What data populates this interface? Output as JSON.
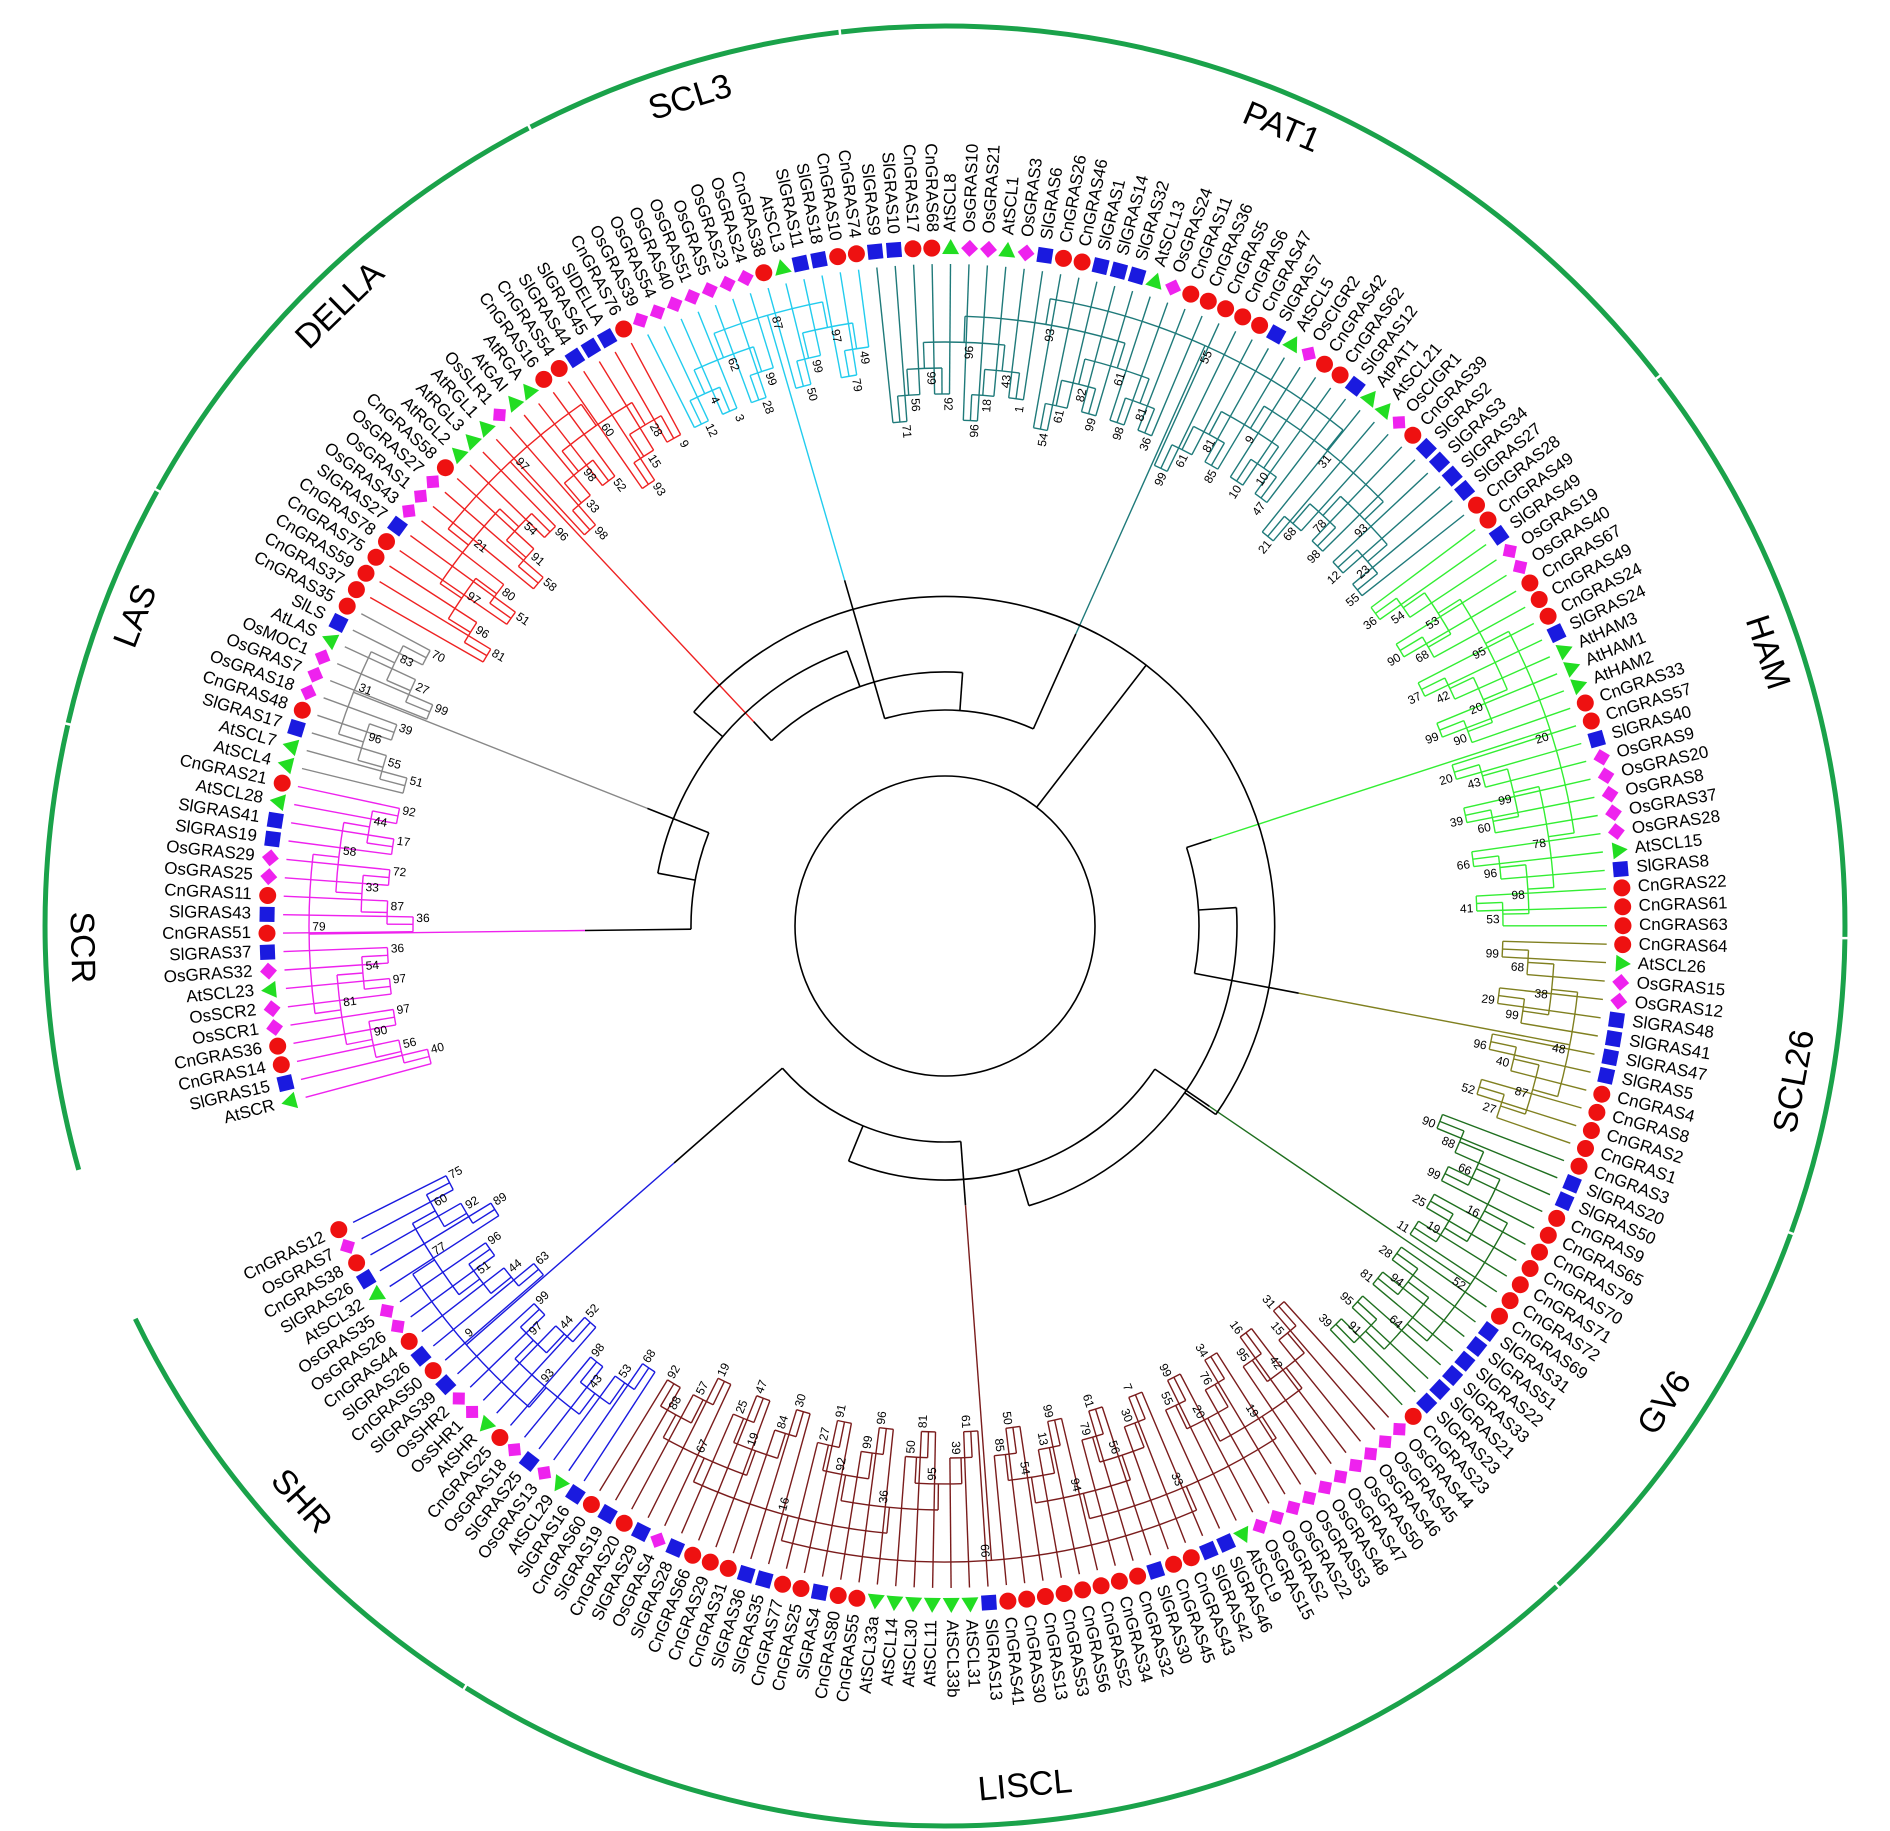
{
  "legend_colors": {
    "Sl": "#1a1adf",
    "Cn": "#ee1111",
    "Os": "#ee22ee",
    "At": "#22dd22",
    "arc": "#1aa24a"
  },
  "marker_shapes": {
    "Sl": "square",
    "Cn": "circle",
    "Os": "diamond",
    "At": "triangle"
  },
  "groups": [
    {
      "name": "SCR",
      "color": "#ee22ee",
      "leaves": [
        "AtSCR",
        "SlGRAS15",
        "CnGRAS14",
        "CnGRAS36",
        "OsSCR1",
        "OsSCR2",
        "AtSCL23",
        "OsGRAS32",
        "SlGRAS37",
        "CnGRAS51",
        "SlGRAS43",
        "CnGRAS11",
        "OsGRAS25",
        "OsGRAS29",
        "SlGRAS19",
        "SlGRAS41",
        "AtSCL28",
        "CnGRAS21"
      ]
    },
    {
      "name": "LAS",
      "color": "#888888",
      "leaves": [
        "AtSCL4",
        "AtSCL7",
        "SlGRAS17",
        "CnGRAS48",
        "OsGRAS18",
        "OsGRAS7",
        "OsMOC1",
        "AtLAS",
        "SlLS",
        "CnGRAS35"
      ]
    },
    {
      "name": "DELLA",
      "color": "#ee2222",
      "leaves": [
        "CnGRAS37",
        "CnGRAS59",
        "CnGRAS75",
        "CnGRAS78",
        "SlGRAS27",
        "OsGRAS43",
        "OsGRAS1",
        "OsGRAS27",
        "CnGRAS58",
        "AtRGL2",
        "AtRGL3",
        "AtRGL1",
        "OsSLR1",
        "AtGAI",
        "AtRGA",
        "CnGRAS16",
        "CnGRAS54",
        "SlGRAS44",
        "SlGRAS45",
        "SlDELLA",
        "CnGRAS76"
      ]
    },
    {
      "name": "SCL3",
      "color": "#22ccee",
      "leaves": [
        "OsGRAS39",
        "OsGRAS54",
        "OsGRAS40",
        "OsGRAS51",
        "OsGRAS5",
        "OsGRAS23",
        "OsGRAS24",
        "CnGRAS38",
        "AtSCL3",
        "SlGRAS11",
        "SlGRAS18",
        "CnGRAS10",
        "CnGRAS74"
      ]
    },
    {
      "name": "PAT1",
      "color": "#1f7a7a",
      "leaves": [
        "SlGRAS9",
        "SlGRAS10",
        "CnGRAS17",
        "CnGRAS68",
        "AtSCL8",
        "OsGRAS10",
        "OsGRAS21",
        "AtSCL1",
        "OsGRAS3",
        "SlGRAS6",
        "CnGRAS26",
        "CnGRAS46",
        "SlGRAS1",
        "SlGRAS14",
        "SlGRAS32",
        "AtSCL13",
        "OsGRAS24",
        "CnGRAS11",
        "CnGRAS36",
        "CnGRAS5",
        "CnGRAS6",
        "CnGRAS47",
        "SlGRAS7",
        "AtSCL5",
        "OsCIGR2",
        "CnGRAS42",
        "CnGRAS62",
        "SlGRAS12",
        "AtPAT1",
        "AtSCL21",
        "OsCIGR1",
        "CnGRAS39",
        "SlGRAS2",
        "SlGRAS3",
        "SlGRAS34",
        "SlGRAS27",
        "CnGRAS28"
      ]
    },
    {
      "name": "HAM",
      "color": "#33ee33",
      "leaves": [
        "CnGRAS49",
        "SlGRAS49",
        "OsGRAS19",
        "OsGRAS40",
        "CnGRAS67",
        "CnGRAS49",
        "CnGRAS24",
        "SlGRAS24",
        "AtHAM3",
        "AtHAM1",
        "AtHAM2",
        "CnGRAS33",
        "CnGRAS57",
        "SlGRAS40",
        "OsGRAS9",
        "OsGRAS20",
        "OsGRAS8",
        "OsGRAS37",
        "OsGRAS28",
        "AtSCL15",
        "SlGRAS8",
        "CnGRAS22",
        "CnGRAS61",
        "CnGRAS63"
      ]
    },
    {
      "name": "SCL26",
      "color": "#808020",
      "leaves": [
        "CnGRAS64",
        "AtSCL26",
        "OsGRAS15",
        "OsGRAS12",
        "SlGRAS48",
        "SlGRAS41",
        "SlGRAS47",
        "SlGRAS5",
        "CnGRAS4",
        "CnGRAS8",
        "CnGRAS2",
        "CnGRAS1"
      ]
    },
    {
      "name": "GV6",
      "color": "#1f6f1f",
      "leaves": [
        "CnGRAS3",
        "SlGRAS20",
        "SlGRAS50",
        "CnGRAS9",
        "CnGRAS65",
        "CnGRAS79",
        "CnGRAS70",
        "CnGRAS71",
        "CnGRAS72",
        "CnGRAS69",
        "SlGRAS31",
        "SlGRAS51",
        "SlGRAS22",
        "SlGRAS33",
        "SlGRAS21",
        "SlGRAS23",
        "CnGRAS23"
      ]
    },
    {
      "name": "LISCL",
      "color": "#7a1c1c",
      "leaves": [
        "OsGRAS44",
        "OsGRAS45",
        "OsGRAS46",
        "OsGRAS50",
        "OsGRAS47",
        "OsGRAS48",
        "OsGRAS53",
        "OsGRAS22",
        "OsGRAS2",
        "OsGRAS15",
        "AtSCL9",
        "SlGRAS46",
        "SlGRAS42",
        "CnGRAS43",
        "CnGRAS45",
        "SlGRAS30",
        "CnGRAS32",
        "CnGRAS34",
        "CnGRAS52",
        "CnGRAS56",
        "CnGRAS53",
        "CnGRAS13",
        "CnGRAS30",
        "CnGRAS41",
        "SlGRAS13",
        "AtSCL31",
        "AtSCL33b",
        "AtSCL11",
        "AtSCL30",
        "AtSCL14",
        "AtSCL33a",
        "CnGRAS55",
        "CnGRAS80",
        "SlGRAS4",
        "CnGRAS25",
        "CnGRAS77",
        "SlGRAS35",
        "SlGRAS36",
        "CnGRAS31",
        "CnGRAS29",
        "CnGRAS66",
        "SlGRAS28",
        "OsGRAS4",
        "SlGRAS29",
        "CnGRAS20",
        "SlGRAS19",
        "CnGRAS60"
      ]
    },
    {
      "name": "SHR",
      "color": "#1a1adf",
      "leaves": [
        "SlGRAS16",
        "AtSCL29",
        "OsGRAS13",
        "SlGRAS25",
        "OsGRAS18",
        "CnGRAS25",
        "AtSHR",
        "OsSHR1",
        "OsSHR2",
        "SlGRAS39",
        "CnGRAS50",
        "SlGRAS26",
        "CnGRAS44",
        "OsGRAS26",
        "OsGRAS35",
        "AtSCL32",
        "SlGRAS26",
        "CnGRAS38",
        "OsGRAS7",
        "CnGRAS12"
      ]
    }
  ],
  "bootstrap_values": [
    "40",
    "56",
    "97",
    "90",
    "97",
    "36",
    "54",
    "81",
    "36",
    "87",
    "72",
    "33",
    "17",
    "92",
    "44",
    "58",
    "79",
    "51",
    "55",
    "39",
    "96",
    "99",
    "27",
    "70",
    "83",
    "31",
    "81",
    "96",
    "51",
    "80",
    "97",
    "58",
    "91",
    "96",
    "54",
    "21",
    "98",
    "33",
    "52",
    "98",
    "93",
    "15",
    "9",
    "28",
    "60",
    "97",
    "12",
    "3",
    "4",
    "28",
    "99",
    "62",
    "50",
    "99",
    "79",
    "49",
    "97",
    "87",
    "71",
    "56",
    "92",
    "99",
    "96",
    "18",
    "1",
    "43",
    "96",
    "54",
    "61",
    "99",
    "82",
    "98",
    "36",
    "81",
    "61",
    "93",
    "99",
    "61",
    "85",
    "81",
    "10",
    "47",
    "10",
    "9",
    "21",
    "68",
    "98",
    "78",
    "12",
    "55",
    "23",
    "93",
    "31",
    "55",
    "36",
    "54",
    "90",
    "68",
    "53",
    "37",
    "42",
    "99",
    "90",
    "20",
    "95",
    "20",
    "43",
    "39",
    "60",
    "99",
    "66",
    "96",
    "41",
    "53",
    "98",
    "78",
    "20",
    "99",
    "68",
    "29",
    "99",
    "38",
    "96",
    "40",
    "52",
    "27",
    "87",
    "48",
    "90",
    "88",
    "99",
    "66",
    "25",
    "11",
    "19",
    "16",
    "28",
    "81",
    "94",
    "95",
    "39",
    "91",
    "64",
    "52",
    "31",
    "15",
    "16",
    "95",
    "42",
    "34",
    "76",
    "99",
    "55",
    "20",
    "19",
    "7",
    "30",
    "61",
    "79",
    "56",
    "99",
    "13",
    "50",
    "85",
    "54",
    "94",
    "33",
    "61",
    "39",
    "81",
    "50",
    "95",
    "96",
    "99",
    "91",
    "27",
    "92",
    "36",
    "30",
    "84",
    "47",
    "25",
    "19",
    "19",
    "57",
    "92",
    "88",
    "67",
    "16",
    "66",
    "68",
    "53",
    "98",
    "43",
    "52",
    "44",
    "99",
    "97",
    "93",
    "63",
    "44",
    "96",
    "51",
    "89",
    "92",
    "75",
    "60",
    "77",
    "9",
    "8",
    "1",
    "1",
    "1"
  ]
}
